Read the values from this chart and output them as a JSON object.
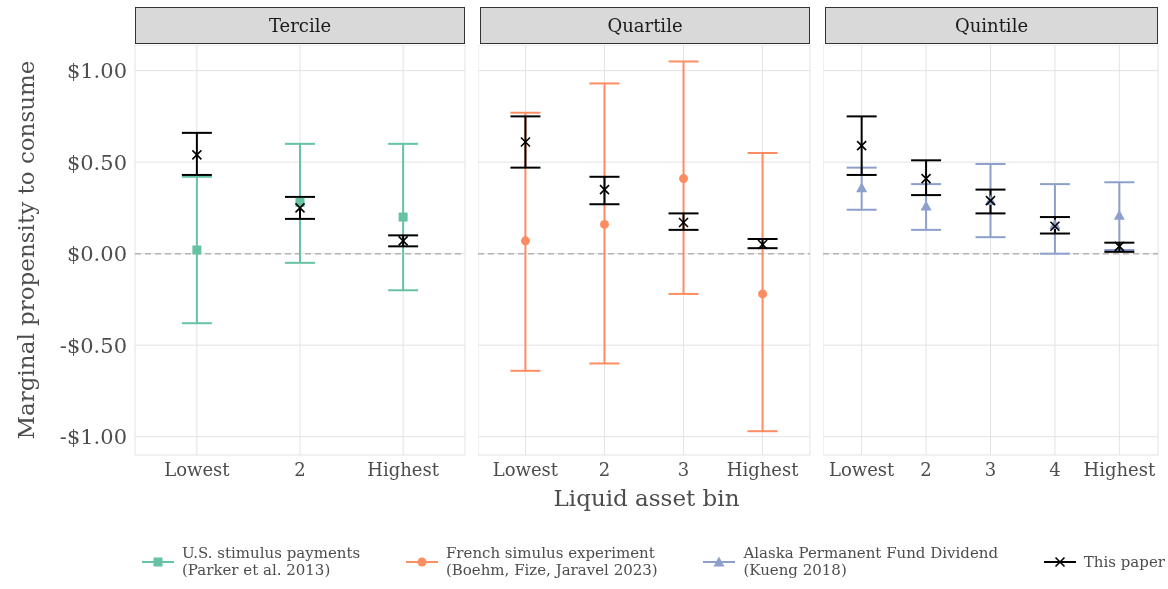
{
  "chart_data": [
    {
      "type": "scatter",
      "title": "Tercile",
      "ylabel": "Marginal propensity to consume",
      "categories": [
        "Lowest",
        "2",
        "Highest"
      ],
      "ylim": [
        -1.1,
        1.14
      ],
      "yticks": [
        {
          "value": -1,
          "label": "-$1.00"
        },
        {
          "value": -0.5,
          "label": "-$0.50"
        },
        {
          "value": 0,
          "label": "$0.00"
        },
        {
          "value": 0.5,
          "label": "$0.50"
        },
        {
          "value": 1,
          "label": "$1.00"
        }
      ],
      "grid": true,
      "legend": "bottom",
      "ref_lines": [
        {
          "axis": "y",
          "value": 0,
          "color": "#b3b3b3",
          "line_style": "dashed"
        }
      ],
      "series": [
        {
          "name": "U.S. stimulus payments\n(Parker et al. 2013)",
          "color": "#66c2a5",
          "marker": "square",
          "values": [
            0.02,
            0.28,
            0.2
          ],
          "errors": [
            [
              -0.38,
              0.42
            ],
            [
              -0.05,
              0.6
            ],
            [
              -0.2,
              0.6
            ]
          ]
        },
        {
          "name": "This paper",
          "color": "#000000",
          "marker": "cross",
          "values": [
            0.54,
            0.25,
            0.07
          ],
          "errors": [
            [
              0.43,
              0.66
            ],
            [
              0.19,
              0.31
            ],
            [
              0.04,
              0.1
            ]
          ]
        }
      ]
    },
    {
      "type": "scatter",
      "title": "Quartile",
      "xlabel": "Liquid asset bin",
      "categories": [
        "Lowest",
        "2",
        "3",
        "Highest"
      ],
      "ylim": [
        -1.1,
        1.14
      ],
      "yticks": [
        -1,
        -0.5,
        0,
        0.5,
        1
      ],
      "tick_labels": "x",
      "grid": true,
      "legend": "bottom",
      "ref_lines": [
        {
          "axis": "y",
          "value": 0,
          "color": "#b3b3b3",
          "line_style": "dashed"
        }
      ],
      "series": [
        {
          "name": "French simulus experiment\n(Boehm, Fize, Jaravel 2023)",
          "color": "#fc8d62",
          "marker": "circle",
          "values": [
            0.07,
            0.16,
            0.41,
            -0.22
          ],
          "errors": [
            [
              -0.64,
              0.77
            ],
            [
              -0.6,
              0.93
            ],
            [
              -0.22,
              1.05
            ],
            [
              -0.97,
              0.55
            ]
          ]
        },
        {
          "name": "This paper",
          "color": "#000000",
          "marker": "cross",
          "values": [
            0.61,
            0.35,
            0.17,
            0.05
          ],
          "errors": [
            [
              0.47,
              0.75
            ],
            [
              0.27,
              0.42
            ],
            [
              0.13,
              0.22
            ],
            [
              0.03,
              0.08
            ]
          ]
        }
      ]
    },
    {
      "type": "scatter",
      "title": "Quintile",
      "categories": [
        "Lowest",
        "2",
        "3",
        "4",
        "Highest"
      ],
      "ylim": [
        -1.1,
        1.14
      ],
      "yticks": [
        -1,
        -0.5,
        0,
        0.5,
        1
      ],
      "tick_labels": "x",
      "grid": true,
      "legend": "bottom",
      "ref_lines": [
        {
          "axis": "y",
          "value": 0,
          "color": "#b3b3b3",
          "line_style": "dashed"
        }
      ],
      "series": [
        {
          "name": "Alaska Permanent Fund Dividend\n(Kueng 2018)",
          "color": "#8da0cb",
          "marker": "triangle",
          "values": [
            0.36,
            0.26,
            0.29,
            0.16,
            0.21
          ],
          "errors": [
            [
              0.24,
              0.47
            ],
            [
              0.13,
              0.38
            ],
            [
              0.09,
              0.49
            ],
            [
              0,
              0.38
            ],
            [
              0.02,
              0.39
            ]
          ]
        },
        {
          "name": "This paper",
          "color": "#000000",
          "marker": "cross",
          "values": [
            0.59,
            0.41,
            0.29,
            0.15,
            0.04
          ],
          "errors": [
            [
              0.43,
              0.75
            ],
            [
              0.32,
              0.51
            ],
            [
              0.22,
              0.35
            ],
            [
              0.11,
              0.2
            ],
            [
              0.01,
              0.06
            ]
          ]
        }
      ]
    }
  ]
}
